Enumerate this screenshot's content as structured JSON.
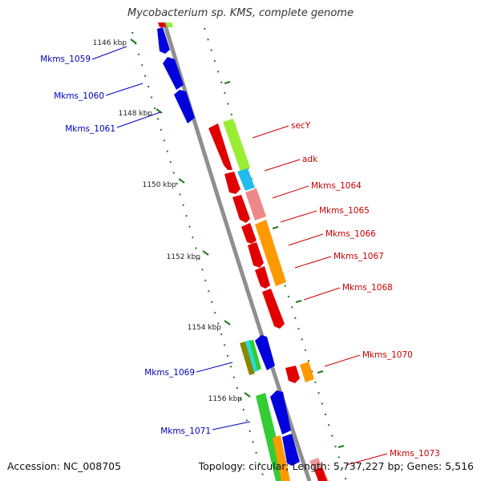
{
  "title": "Mycobacterium sp. KMS, complete genome",
  "footer": {
    "accession": "Accession: NC_008705",
    "summary": "Topology: circular; Length: 5,737,227 bp; Genes: 5,516"
  },
  "colors": {
    "backbone": "#8f8f8f",
    "tick": "#1e7a1e",
    "forward_label": "#cc0000",
    "reverse_label": "#0000bb"
  },
  "ticks": [
    {
      "label": "1146 kbp"
    },
    {
      "label": "1148 kbp"
    },
    {
      "label": "1150 kbp"
    },
    {
      "label": "1152 kbp"
    },
    {
      "label": "1154 kbp"
    },
    {
      "label": "1156 kbp"
    }
  ],
  "genes": [
    {
      "name": "Mkms_1059",
      "strand": "reverse"
    },
    {
      "name": "Mkms_1060",
      "strand": "reverse"
    },
    {
      "name": "Mkms_1061",
      "strand": "reverse"
    },
    {
      "name": "secY",
      "strand": "forward"
    },
    {
      "name": "adk",
      "strand": "forward"
    },
    {
      "name": "Mkms_1064",
      "strand": "forward"
    },
    {
      "name": "Mkms_1065",
      "strand": "forward"
    },
    {
      "name": "Mkms_1066",
      "strand": "forward"
    },
    {
      "name": "Mkms_1067",
      "strand": "forward"
    },
    {
      "name": "Mkms_1068",
      "strand": "forward"
    },
    {
      "name": "Mkms_1069",
      "strand": "reverse"
    },
    {
      "name": "Mkms_1070",
      "strand": "forward"
    },
    {
      "name": "Mkms_1071",
      "strand": "reverse"
    },
    {
      "name": "Mkms_1073",
      "strand": "forward"
    }
  ]
}
